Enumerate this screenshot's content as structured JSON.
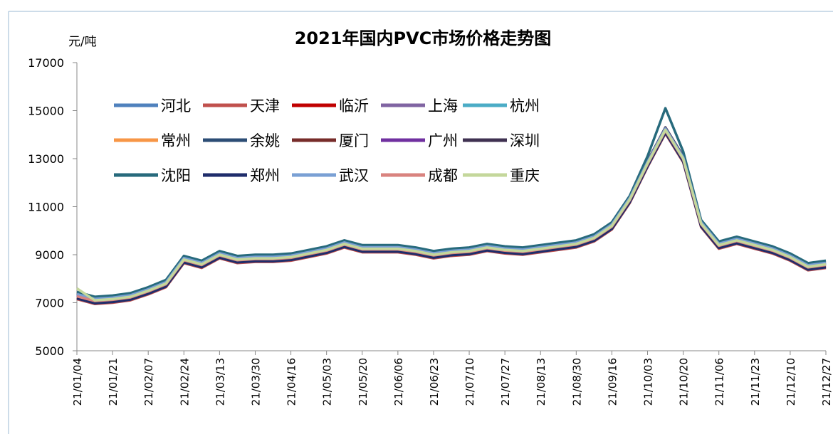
{
  "chart_data": {
    "type": "line",
    "title": "2021年国内PVC市场价格走势图",
    "y_label": "元/吨",
    "categories": [
      "21/01/04",
      null,
      "21/01/21",
      null,
      "21/02/07",
      null,
      "21/02/24",
      null,
      "21/03/13",
      null,
      "21/03/30",
      null,
      "21/04/16",
      null,
      "21/05/03",
      null,
      "21/05/20",
      null,
      "21/06/06",
      null,
      "21/06/23",
      null,
      "21/07/10",
      null,
      "21/07/27",
      null,
      "21/08/13",
      null,
      "21/08/30",
      null,
      "21/09/16",
      null,
      "21/10/03",
      null,
      "21/10/20",
      null,
      "21/11/06",
      null,
      "21/11/23",
      null,
      "21/12/10",
      null,
      "21/12/27"
    ],
    "ylim": [
      5000,
      17000
    ],
    "yticks": [
      5000,
      7000,
      9000,
      11000,
      13000,
      15000,
      17000
    ],
    "series": [
      {
        "name": "河北",
        "color": "#4f81bd",
        "values": [
          7350,
          7150,
          7200,
          7300,
          7550,
          7850,
          8850,
          8650,
          9050,
          8850,
          8900,
          8900,
          8950,
          9100,
          9250,
          9500,
          9300,
          9300,
          9300,
          9200,
          9050,
          9150,
          9200,
          9350,
          9250,
          9200,
          9300,
          9400,
          9500,
          9750,
          10250,
          11350,
          12850,
          14250,
          13050,
          10350,
          9450,
          9650,
          9450,
          9250,
          8950,
          8550,
          8650
        ]
      },
      {
        "name": "天津",
        "color": "#c0504d",
        "values": [
          7150,
          6950,
          7000,
          7100,
          7350,
          7650,
          8650,
          8450,
          8850,
          8650,
          8700,
          8700,
          8750,
          8900,
          9050,
          9300,
          9100,
          9100,
          9100,
          9000,
          8850,
          8950,
          9000,
          9150,
          9050,
          9000,
          9100,
          9200,
          9300,
          9550,
          10050,
          11150,
          12650,
          14050,
          12850,
          10150,
          9250,
          9450,
          9250,
          9050,
          8750,
          8350,
          8450
        ]
      },
      {
        "name": "临沂",
        "color": "#c00000",
        "values": [
          7200,
          7000,
          7050,
          7150,
          7400,
          7700,
          8700,
          8500,
          8900,
          8700,
          8750,
          8750,
          8800,
          8950,
          9100,
          9350,
          9150,
          9150,
          9150,
          9050,
          8900,
          9000,
          9050,
          9200,
          9100,
          9050,
          9150,
          9250,
          9350,
          9600,
          10100,
          11200,
          12700,
          14100,
          12900,
          10200,
          9300,
          9500,
          9300,
          9100,
          8800,
          8400,
          8500
        ]
      },
      {
        "name": "上海",
        "color": "#8064a2",
        "values": [
          7300,
          7100,
          7150,
          7250,
          7500,
          7800,
          8800,
          8600,
          9000,
          8800,
          8850,
          8850,
          8900,
          9050,
          9200,
          9450,
          9250,
          9250,
          9250,
          9150,
          9000,
          9100,
          9150,
          9300,
          9200,
          9150,
          9250,
          9350,
          9450,
          9700,
          10200,
          11300,
          12800,
          14200,
          13000,
          10300,
          9400,
          9600,
          9400,
          9200,
          8900,
          8500,
          8600
        ]
      },
      {
        "name": "杭州",
        "color": "#4bacc6",
        "values": [
          7330,
          7130,
          7180,
          7280,
          7530,
          7830,
          8830,
          8630,
          9030,
          8830,
          8880,
          8880,
          8930,
          9080,
          9230,
          9480,
          9280,
          9280,
          9280,
          9180,
          9030,
          9130,
          9180,
          9330,
          9230,
          9180,
          9280,
          9380,
          9480,
          9730,
          10230,
          11330,
          12830,
          14230,
          13030,
          10330,
          9430,
          9630,
          9430,
          9230,
          8930,
          8530,
          8630
        ]
      },
      {
        "name": "常州",
        "color": "#f79646",
        "values": [
          7250,
          7050,
          7100,
          7200,
          7450,
          7750,
          8750,
          8550,
          8950,
          8750,
          8800,
          8800,
          8850,
          9000,
          9150,
          9400,
          9200,
          9200,
          9200,
          9100,
          8950,
          9050,
          9100,
          9250,
          9150,
          9100,
          9200,
          9300,
          9400,
          9650,
          10150,
          11250,
          12750,
          14150,
          12950,
          10250,
          9350,
          9550,
          9350,
          9150,
          8850,
          8450,
          8550
        ]
      },
      {
        "name": "余姚",
        "color": "#2c4d75",
        "values": [
          7380,
          7180,
          7230,
          7330,
          7580,
          7880,
          8880,
          8680,
          9080,
          8880,
          8930,
          8930,
          8980,
          9130,
          9280,
          9530,
          9330,
          9330,
          9330,
          9230,
          9080,
          9180,
          9230,
          9380,
          9280,
          9230,
          9330,
          9430,
          9530,
          9780,
          10280,
          11380,
          12880,
          14280,
          13080,
          10380,
          9480,
          9680,
          9480,
          9280,
          8980,
          8580,
          8680
        ]
      },
      {
        "name": "厦门",
        "color": "#772c2a",
        "values": [
          7220,
          7020,
          7070,
          7170,
          7420,
          7720,
          8720,
          8520,
          8920,
          8720,
          8770,
          8770,
          8820,
          8970,
          9120,
          9370,
          9170,
          9170,
          9170,
          9070,
          8920,
          9020,
          9070,
          9220,
          9120,
          9070,
          9170,
          9270,
          9370,
          9620,
          10120,
          11220,
          12720,
          14120,
          12920,
          10220,
          9320,
          9520,
          9320,
          9120,
          8820,
          8420,
          8520
        ]
      },
      {
        "name": "广州",
        "color": "#7030a0",
        "values": [
          7320,
          7120,
          7170,
          7270,
          7520,
          7820,
          8820,
          8620,
          9020,
          8820,
          8870,
          8870,
          8920,
          9070,
          9220,
          9470,
          9270,
          9270,
          9270,
          9170,
          9020,
          9120,
          9170,
          9320,
          9220,
          9170,
          9270,
          9370,
          9470,
          9720,
          10220,
          11320,
          12820,
          14220,
          13020,
          10320,
          9420,
          9620,
          9420,
          9220,
          8920,
          8520,
          8620
        ]
      },
      {
        "name": "深圳",
        "color": "#3f3151",
        "values": [
          7400,
          7200,
          7250,
          7350,
          7600,
          7900,
          8900,
          8700,
          9100,
          8900,
          8950,
          8950,
          9000,
          9150,
          9300,
          9550,
          9350,
          9350,
          9350,
          9250,
          9100,
          9200,
          9250,
          9400,
          9300,
          9250,
          9350,
          9450,
          9550,
          9800,
          10300,
          11400,
          12900,
          14300,
          13100,
          10400,
          9500,
          9700,
          9500,
          9300,
          9000,
          8600,
          8700
        ]
      },
      {
        "name": "沈阳",
        "color": "#276a7c",
        "values": [
          7450,
          7250,
          7300,
          7400,
          7650,
          7950,
          8950,
          8750,
          9150,
          8950,
          9000,
          9000,
          9050,
          9200,
          9350,
          9600,
          9400,
          9400,
          9400,
          9300,
          9150,
          9250,
          9300,
          9450,
          9350,
          9300,
          9400,
          9500,
          9600,
          9850,
          10350,
          11450,
          13100,
          15100,
          13300,
          10450,
          9550,
          9750,
          9550,
          9350,
          9050,
          8650,
          8750
        ]
      },
      {
        "name": "郑州",
        "color": "#1f2d6b",
        "values": [
          7180,
          6980,
          7030,
          7130,
          7380,
          7680,
          8680,
          8480,
          8880,
          8680,
          8730,
          8730,
          8780,
          8930,
          9080,
          9330,
          9130,
          9130,
          9130,
          9030,
          8880,
          8980,
          9030,
          9180,
          9080,
          9030,
          9130,
          9230,
          9330,
          9580,
          10080,
          11180,
          12680,
          14080,
          12880,
          10180,
          9280,
          9480,
          9280,
          9080,
          8780,
          8380,
          8480
        ]
      },
      {
        "name": "武汉",
        "color": "#7aa0d4",
        "values": [
          7360,
          7160,
          7210,
          7310,
          7560,
          7860,
          8860,
          8660,
          9060,
          8860,
          8910,
          8910,
          8960,
          9110,
          9260,
          9510,
          9310,
          9310,
          9310,
          9210,
          9060,
          9160,
          9210,
          9360,
          9260,
          9210,
          9310,
          9410,
          9510,
          9760,
          10260,
          11360,
          12860,
          14260,
          13060,
          10360,
          9460,
          9660,
          9460,
          9260,
          8960,
          8560,
          8660
        ]
      },
      {
        "name": "成都",
        "color": "#d9837f",
        "values": [
          7270,
          7070,
          7120,
          7220,
          7470,
          7770,
          8770,
          8570,
          8970,
          8770,
          8820,
          8820,
          8870,
          9020,
          9170,
          9420,
          9220,
          9220,
          9220,
          9120,
          8970,
          9070,
          9120,
          9270,
          9170,
          9120,
          9220,
          9320,
          9420,
          9670,
          10170,
          11270,
          12770,
          14170,
          12970,
          10270,
          9370,
          9570,
          9370,
          9170,
          8870,
          8470,
          8570
        ]
      },
      {
        "name": "重庆",
        "color": "#c4d79b",
        "values": [
          7600,
          7100,
          7150,
          7250,
          7500,
          7800,
          8800,
          8600,
          9000,
          8800,
          8850,
          8850,
          8900,
          9050,
          9200,
          9450,
          9250,
          9250,
          9250,
          9150,
          9000,
          9100,
          9150,
          9300,
          9200,
          9150,
          9250,
          9350,
          9450,
          9700,
          10200,
          11300,
          12800,
          14200,
          13000,
          10300,
          9400,
          9600,
          9400,
          9200,
          8900,
          8500,
          8600
        ]
      }
    ]
  }
}
